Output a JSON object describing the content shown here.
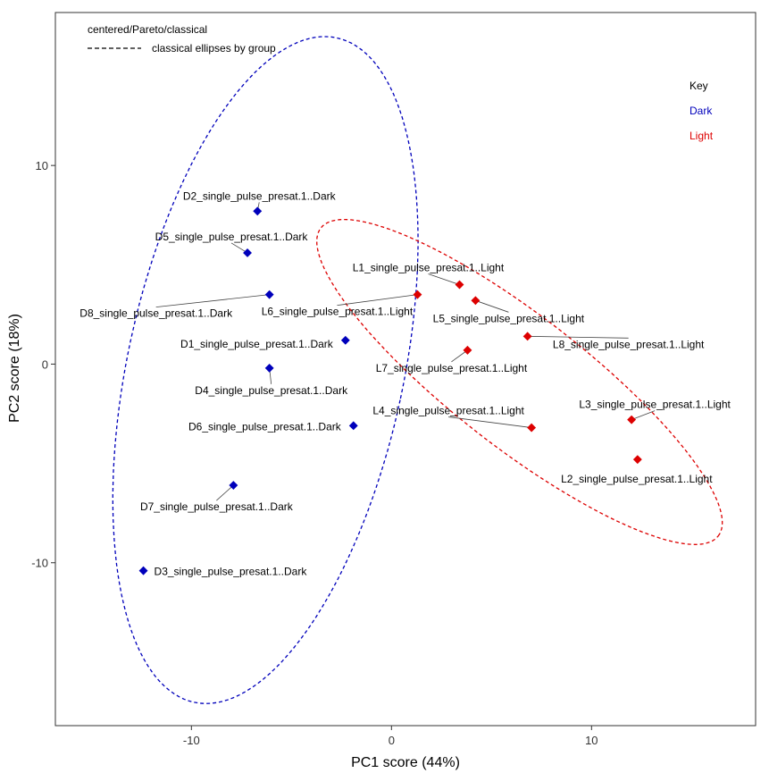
{
  "chart_data": {
    "type": "scatter",
    "xlabel": "PC1 score (44%)",
    "ylabel": "PC2 score (18%)",
    "xlim": [
      -16.8,
      18.2
    ],
    "ylim": [
      -18.2,
      17.7
    ],
    "x_ticks": [
      -10,
      0,
      10
    ],
    "y_ticks": [
      -10,
      0,
      10
    ],
    "legend_top": {
      "title": "centered/Pareto/classical",
      "entry": "classical ellipses by group"
    },
    "legend_key": {
      "title": "Key",
      "groups": [
        {
          "name": "Dark",
          "color": "#0000bb"
        },
        {
          "name": "Light",
          "color": "#dd0000"
        }
      ]
    },
    "series": [
      {
        "name": "Dark",
        "color": "#0000bb",
        "points": [
          {
            "label": "D1_single_pulse_presat.1..Dark",
            "x": -2.3,
            "y": 1.2
          },
          {
            "label": "D2_single_pulse_presat.1..Dark",
            "x": -6.7,
            "y": 7.7
          },
          {
            "label": "D3_single_pulse_presat.1..Dark",
            "x": -12.4,
            "y": -10.4
          },
          {
            "label": "D4_single_pulse_presat.1..Dark",
            "x": -6.1,
            "y": -0.2
          },
          {
            "label": "D5_single_pulse_presat.1..Dark",
            "x": -7.2,
            "y": 5.6
          },
          {
            "label": "D6_single_pulse_presat.1..Dark",
            "x": -1.9,
            "y": -3.1
          },
          {
            "label": "D7_single_pulse_presat.1..Dark",
            "x": -7.9,
            "y": -6.1
          },
          {
            "label": "D8_single_pulse_presat.1..Dark",
            "x": -6.1,
            "y": 3.5
          }
        ]
      },
      {
        "name": "Light",
        "color": "#dd0000",
        "points": [
          {
            "label": "L1_single_pulse_presat.1..Light",
            "x": 3.4,
            "y": 4.0
          },
          {
            "label": "L2_single_pulse_presat.1..Light",
            "x": 12.3,
            "y": -4.8
          },
          {
            "label": "L3_single_pulse_presat.1..Light",
            "x": 12.0,
            "y": -2.8
          },
          {
            "label": "L4_single_pulse_presat.1..Light",
            "x": 7.0,
            "y": -3.2
          },
          {
            "label": "L5_single_pulse_presat.1..Light",
            "x": 4.2,
            "y": 3.2
          },
          {
            "label": "L6_single_pulse_presat.1..Light",
            "x": 1.3,
            "y": 3.5
          },
          {
            "label": "L7_single_pulse_presat.1..Light",
            "x": 3.8,
            "y": 0.7
          },
          {
            "label": "L8_single_pulse_presat.1..Light",
            "x": 6.8,
            "y": 1.4
          }
        ]
      }
    ],
    "ellipses": [
      {
        "group": "Dark",
        "color": "#0000bb",
        "center": [
          -6.3,
          -0.3
        ],
        "semi_axes": [
          6.9,
          17.1
        ],
        "rotation_deg": -12
      },
      {
        "group": "Light",
        "color": "#dd0000",
        "center": [
          6.4,
          -0.9
        ],
        "semi_axes": [
          12.6,
          3.3
        ],
        "rotation_deg": -38
      }
    ]
  }
}
